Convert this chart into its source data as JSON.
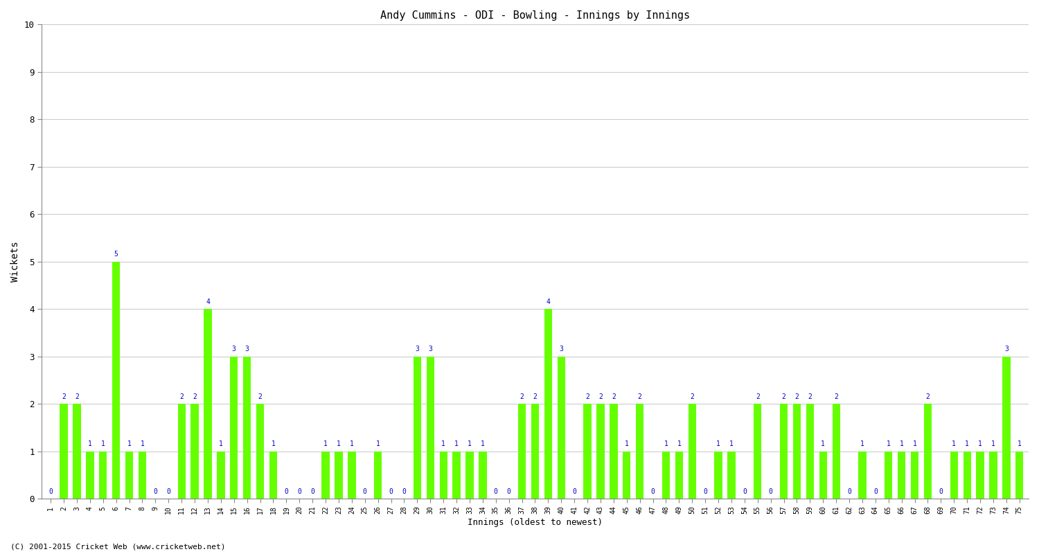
{
  "title": "Andy Cummins - ODI - Bowling - Innings by Innings",
  "ylabel": "Wickets",
  "xlabel": "Innings (oldest to newest)",
  "footer": "(C) 2001-2015 Cricket Web (www.cricketweb.net)",
  "ylim": [
    0,
    10
  ],
  "yticks": [
    0,
    1,
    2,
    3,
    4,
    5,
    6,
    7,
    8,
    9,
    10
  ],
  "bar_color": "#66ff00",
  "label_color": "#0000cc",
  "innings": [
    1,
    2,
    3,
    4,
    5,
    6,
    7,
    8,
    9,
    10,
    11,
    12,
    13,
    14,
    15,
    16,
    17,
    18,
    19,
    20,
    21,
    22,
    23,
    24,
    25,
    26,
    27,
    28,
    29,
    30,
    31,
    32,
    33,
    34,
    35,
    36,
    37,
    38,
    39,
    40,
    41,
    42,
    43,
    44,
    45,
    46,
    47,
    48,
    49,
    50,
    51,
    52,
    53,
    54,
    55,
    56,
    57,
    58,
    59,
    60,
    61,
    62,
    63,
    64,
    65,
    66,
    67,
    68,
    69,
    70,
    71,
    72,
    73,
    74,
    75
  ],
  "wickets": [
    0,
    2,
    2,
    1,
    1,
    5,
    1,
    1,
    0,
    0,
    2,
    2,
    4,
    1,
    3,
    3,
    2,
    1,
    0,
    0,
    0,
    1,
    1,
    1,
    0,
    1,
    0,
    0,
    3,
    3,
    1,
    1,
    1,
    1,
    0,
    0,
    2,
    2,
    4,
    3,
    0,
    2,
    2,
    2,
    1,
    2,
    0,
    1,
    1,
    2,
    0,
    1,
    1,
    0,
    2,
    0,
    2,
    2,
    2,
    1,
    2,
    0,
    1,
    0,
    1,
    1,
    1,
    2,
    0,
    1,
    1,
    1,
    1,
    3,
    1
  ]
}
